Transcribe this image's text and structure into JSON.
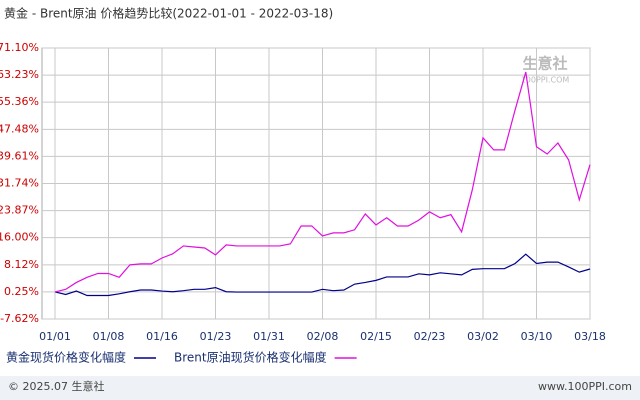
{
  "chart_data": {
    "type": "line",
    "title": "黄金 - Brent原油 价格趋势比较(2022-01-01 - 2022-03-18)",
    "watermark": "生意社",
    "watermark_sub": "100PPI.COM",
    "footer_left": "© 2025.07 生意社",
    "footer_right": "www.100PPI.com",
    "categories": [
      "01/01",
      null,
      null,
      null,
      null,
      "01/08",
      null,
      null,
      null,
      null,
      "01/16",
      null,
      null,
      null,
      null,
      "01/23",
      null,
      null,
      null,
      null,
      "01/31",
      null,
      null,
      null,
      null,
      "02/08",
      null,
      null,
      null,
      null,
      "02/15",
      null,
      null,
      null,
      null,
      "02/23",
      null,
      null,
      null,
      null,
      "03/02",
      null,
      null,
      null,
      null,
      "03/10",
      null,
      null,
      null,
      null,
      "03/18"
    ],
    "series": [
      {
        "name": "黄金现货价格变化幅度",
        "color": "#00008b",
        "values": [
          0.25,
          -0.5,
          0.5,
          -0.8,
          -0.8,
          -0.8,
          -0.3,
          0.3,
          0.8,
          0.8,
          0.5,
          0.3,
          0.6,
          1.0,
          1.0,
          1.5,
          0.3,
          0.2,
          0.2,
          0.2,
          0.2,
          0.2,
          0.2,
          0.2,
          0.2,
          1.0,
          0.6,
          0.8,
          2.5,
          3.0,
          3.6,
          4.6,
          4.6,
          4.6,
          5.5,
          5.2,
          5.8,
          5.5,
          5.2,
          6.8,
          7.0,
          7.0,
          7.0,
          8.5,
          11.2,
          8.5,
          8.9,
          8.9,
          7.5,
          6.0,
          6.9
        ]
      },
      {
        "name": "Brent原油现货价格变化幅度",
        "color": "#e010e0",
        "values": [
          0.25,
          1.0,
          3.0,
          4.5,
          5.6,
          5.6,
          4.5,
          8.1,
          8.4,
          8.4,
          10.1,
          11.3,
          13.6,
          13.3,
          13.0,
          11.0,
          13.9,
          13.6,
          13.6,
          13.6,
          13.6,
          13.6,
          14.2,
          19.4,
          19.4,
          16.5,
          17.4,
          17.4,
          18.3,
          22.9,
          19.7,
          21.8,
          19.4,
          19.4,
          21.1,
          23.5,
          21.8,
          22.7,
          17.7,
          29.9,
          45.0,
          41.5,
          41.5,
          53.1,
          64.1,
          42.4,
          40.3,
          43.5,
          38.6,
          27.0,
          37.2
        ]
      }
    ],
    "ylim": [
      -7.62,
      71.1
    ],
    "yticks": [
      {
        "value": -7.62,
        "label": "-7.62%"
      },
      {
        "value": 0.25,
        "label": "0.25%"
      },
      {
        "value": 8.12,
        "label": "8.12%"
      },
      {
        "value": 16.0,
        "label": "16.00%"
      },
      {
        "value": 23.87,
        "label": "23.87%"
      },
      {
        "value": 31.74,
        "label": "31.74%"
      },
      {
        "value": 39.61,
        "label": "39.61%"
      },
      {
        "value": 47.48,
        "label": "47.48%"
      },
      {
        "value": 55.36,
        "label": "55.36%"
      },
      {
        "value": 63.23,
        "label": "63.23%"
      },
      {
        "value": 71.1,
        "label": "71.10%"
      }
    ],
    "grid": true
  }
}
